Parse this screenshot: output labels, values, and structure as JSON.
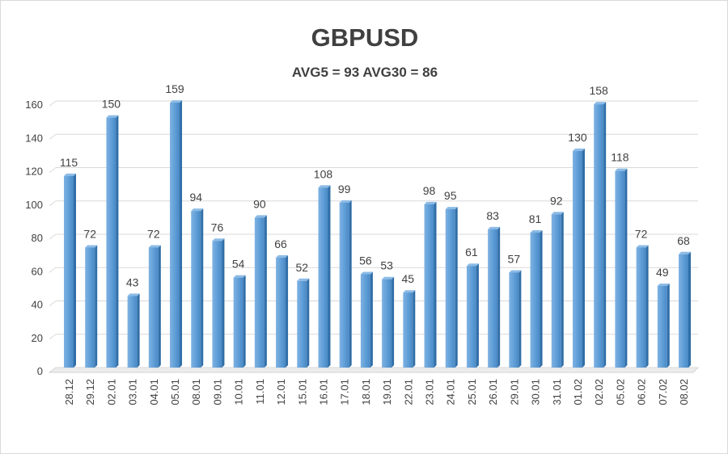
{
  "chart_data": {
    "type": "bar",
    "title": "GBPUSD",
    "subtitle": "AVG5 = 93 AVG30 = 86",
    "xlabel": "",
    "ylabel": "",
    "ylim": [
      0,
      160
    ],
    "yticks": [
      0,
      20,
      40,
      60,
      80,
      100,
      120,
      140,
      160
    ],
    "grid": true,
    "legend": "none",
    "color": "#5b9bd5",
    "categories": [
      "28.12",
      "29.12",
      "02.01",
      "03.01",
      "04.01",
      "05.01",
      "08.01",
      "09.01",
      "10.01",
      "11.01",
      "12.01",
      "15.01",
      "16.01",
      "17.01",
      "18.01",
      "19.01",
      "22.01",
      "23.01",
      "24.01",
      "25.01",
      "26.01",
      "29.01",
      "30.01",
      "31.01",
      "01.02",
      "02.02",
      "05.02",
      "06.02",
      "07.02",
      "08.02"
    ],
    "values": [
      115,
      72,
      150,
      43,
      72,
      159,
      94,
      76,
      54,
      90,
      66,
      52,
      108,
      99,
      56,
      53,
      45,
      98,
      95,
      61,
      83,
      57,
      81,
      92,
      130,
      158,
      118,
      72,
      49,
      68
    ]
  }
}
